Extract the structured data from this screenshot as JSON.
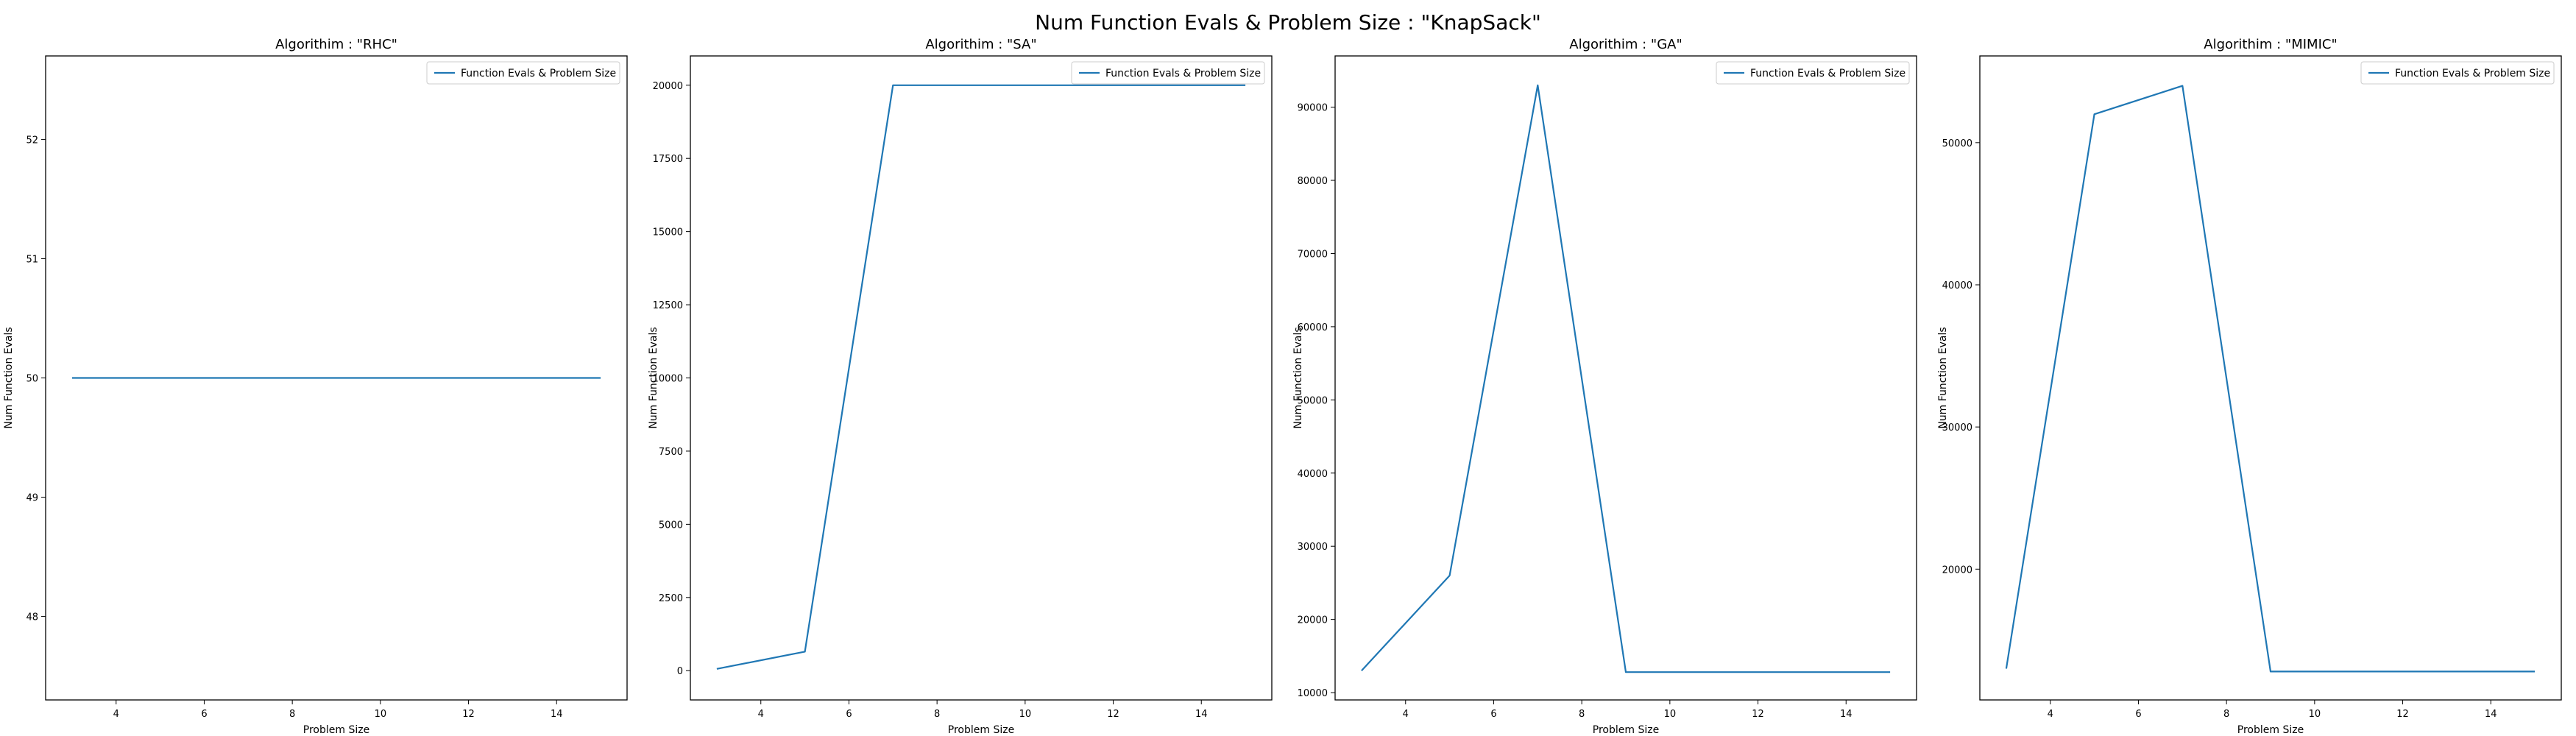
{
  "figure": {
    "title": "Num Function Evals & Problem Size : \"KnapSack\"",
    "line_color": "#1f77b4"
  },
  "chart_data": [
    {
      "type": "line",
      "title": "Algorithim : \"RHC\"",
      "xlabel": "Problem Size",
      "ylabel": "Num Function Evals",
      "x": [
        3,
        5,
        7,
        9,
        11,
        13,
        15
      ],
      "series": [
        {
          "name": "Function Evals & Problem Size",
          "values": [
            50,
            50,
            50,
            50,
            50,
            50,
            50
          ]
        }
      ],
      "xlim": [
        2.4,
        15.6
      ],
      "ylim": [
        47.3,
        52.7
      ],
      "xticks": [
        4,
        6,
        8,
        10,
        12,
        14
      ],
      "yticks": [
        48,
        49,
        50,
        51,
        52
      ],
      "ytick_labels": [
        "48",
        "49",
        "50",
        "51",
        "52"
      ],
      "grid": false,
      "legend": "upper right"
    },
    {
      "type": "line",
      "title": "Algorithim : \"SA\"",
      "xlabel": "Problem Size",
      "ylabel": "Num Function Evals",
      "x": [
        3,
        5,
        7,
        9,
        11,
        13,
        15
      ],
      "series": [
        {
          "name": "Function Evals & Problem Size",
          "values": [
            60,
            650,
            20000,
            20000,
            20000,
            20000,
            20000
          ]
        }
      ],
      "xlim": [
        2.4,
        15.6
      ],
      "ylim": [
        -1000,
        21000
      ],
      "xticks": [
        4,
        6,
        8,
        10,
        12,
        14
      ],
      "yticks": [
        0,
        2500,
        5000,
        7500,
        10000,
        12500,
        15000,
        17500,
        20000
      ],
      "ytick_labels": [
        "0",
        "2500",
        "5000",
        "7500",
        "10000",
        "12500",
        "15000",
        "17500",
        "20000"
      ],
      "grid": false,
      "legend": "upper right"
    },
    {
      "type": "line",
      "title": "Algorithim : \"GA\"",
      "xlabel": "Problem Size",
      "ylabel": "Num Function Evals",
      "x": [
        3,
        5,
        7,
        9,
        11,
        13,
        15
      ],
      "series": [
        {
          "name": "Function Evals & Problem Size",
          "values": [
            13000,
            26000,
            93000,
            12800,
            12800,
            12800,
            12800
          ]
        }
      ],
      "xlim": [
        2.4,
        15.6
      ],
      "ylim": [
        9000,
        97000
      ],
      "xticks": [
        4,
        6,
        8,
        10,
        12,
        14
      ],
      "yticks": [
        10000,
        20000,
        30000,
        40000,
        50000,
        60000,
        70000,
        80000,
        90000
      ],
      "ytick_labels": [
        "10000",
        "20000",
        "30000",
        "40000",
        "50000",
        "60000",
        "70000",
        "80000",
        "90000"
      ],
      "grid": false,
      "legend": "upper right"
    },
    {
      "type": "line",
      "title": "Algorithim : \"MIMIC\"",
      "xlabel": "Problem Size",
      "ylabel": "Num Function Evals",
      "x": [
        3,
        5,
        7,
        9,
        11,
        13,
        15
      ],
      "series": [
        {
          "name": "Function Evals & Problem Size",
          "values": [
            13000,
            52000,
            54000,
            12800,
            12800,
            12800,
            12800
          ]
        }
      ],
      "xlim": [
        2.4,
        15.6
      ],
      "ylim": [
        10800,
        56100
      ],
      "xticks": [
        4,
        6,
        8,
        10,
        12,
        14
      ],
      "yticks": [
        20000,
        30000,
        40000,
        50000
      ],
      "ytick_labels": [
        "20000",
        "30000",
        "40000",
        "50000"
      ],
      "grid": false,
      "legend": "upper right"
    }
  ]
}
